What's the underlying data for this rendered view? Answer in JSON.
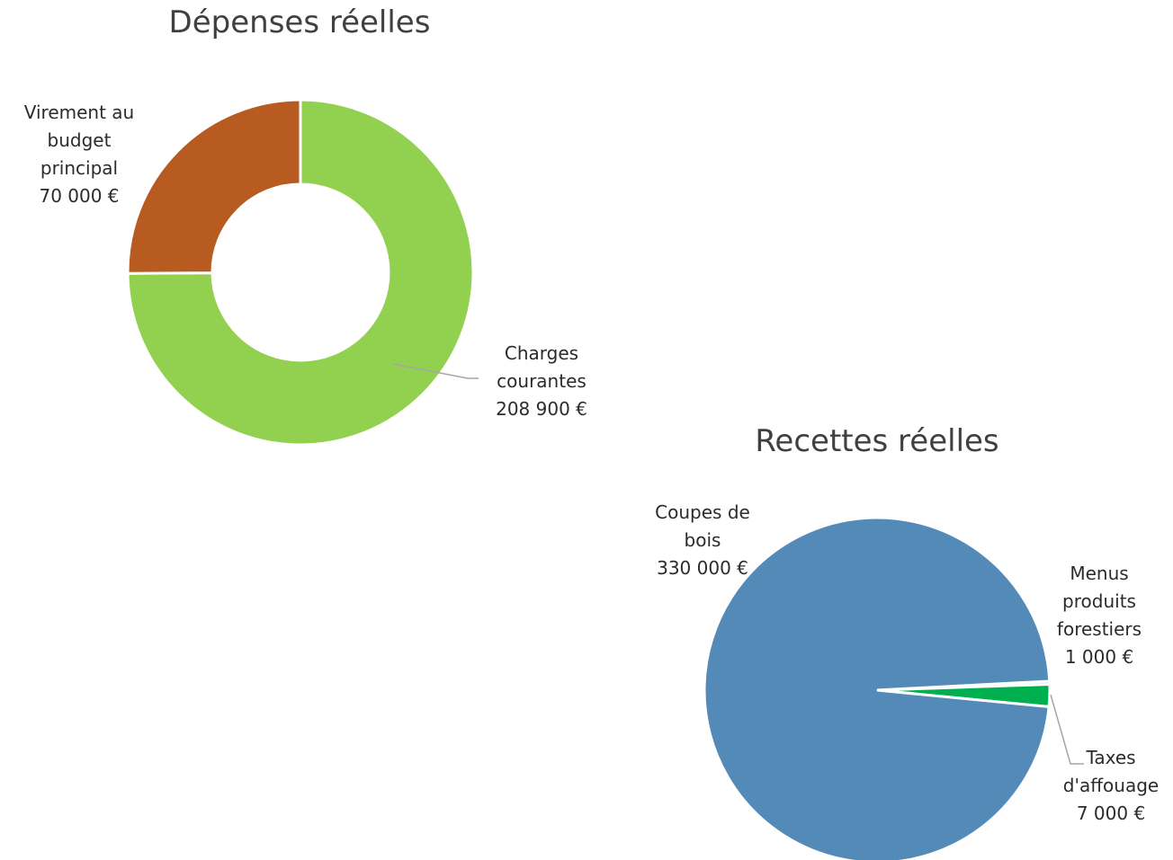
{
  "chart_data": [
    {
      "type": "pie",
      "variant": "donut",
      "title": "Dépenses réelles",
      "slices": [
        {
          "label": [
            "Charges",
            "courantes",
            "208 900 €"
          ],
          "value": 208900,
          "color": "#92d050"
        },
        {
          "label": [
            "Virement au",
            "budget",
            "principal",
            "70 000 €"
          ],
          "value": 70000,
          "color": "#b85b21"
        }
      ]
    },
    {
      "type": "pie",
      "title": "Recettes réelles",
      "slices": [
        {
          "label": [
            "Menus",
            "produits",
            "forestiers",
            "1 000 €"
          ],
          "value": 1000,
          "color": "#9fc9e8"
        },
        {
          "label": [
            "Taxes",
            "d'affouage",
            "7 000 €"
          ],
          "value": 7000,
          "color": "#00b050"
        },
        {
          "label": [
            "Coupes de",
            "bois",
            "330 000 €"
          ],
          "value": 330000,
          "color": "#548ab8"
        }
      ]
    }
  ]
}
